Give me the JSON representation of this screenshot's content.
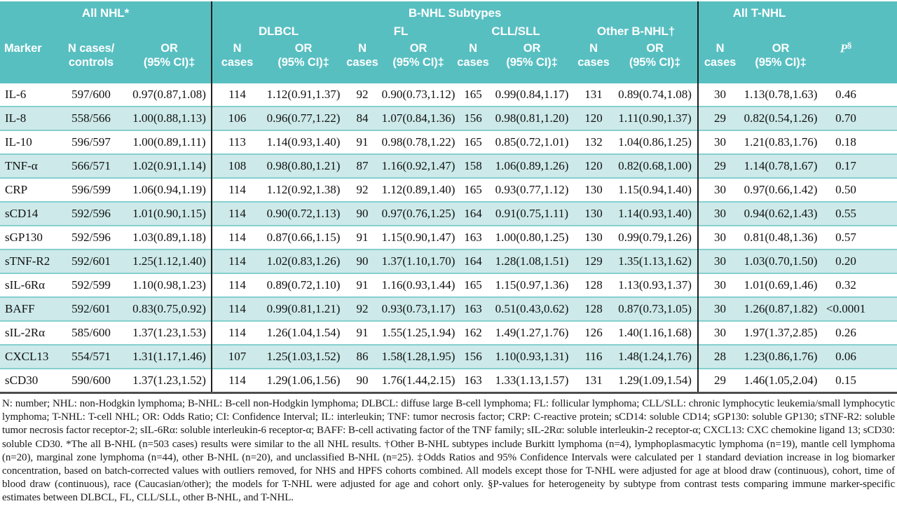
{
  "colors": {
    "header_bg": "#58bfc1",
    "row_shade": "#cde9e9",
    "row_edge": "#85d0d0",
    "divider": "#1f1f1f"
  },
  "header": {
    "groups": {
      "all_nhl": "All NHL*",
      "b_nhl": "B-NHL Subtypes",
      "all_t_nhl": "All T-NHL"
    },
    "subtypes": {
      "dlbcl": "DLBCL",
      "fl": "FL",
      "cll_sll": "CLL/SLL",
      "other_b_nhl": "Other B-NHL†"
    },
    "columns": {
      "marker": "Marker",
      "n_cases_controls": "N cases/\ncontrols",
      "or_ci": "OR\n(95% CI)‡",
      "n_cases": "N\ncases",
      "p_label": "P",
      "p_sup": "§"
    }
  },
  "table": {
    "rows": [
      [
        "IL-6",
        "597/600",
        "0.97(0.87,1.08)",
        "114",
        "1.12(0.91,1.37)",
        "92",
        "0.90(0.73,1.12)",
        "165",
        "0.99(0.84,1.17)",
        "131",
        "0.89(0.74,1.08)",
        "30",
        "1.13(0.78,1.63)",
        "0.46"
      ],
      [
        "IL-8",
        "558/566",
        "1.00(0.88,1.13)",
        "106",
        "0.96(0.77,1.22)",
        "84",
        "1.07(0.84,1.36)",
        "156",
        "0.98(0.81,1.20)",
        "120",
        "1.11(0.90,1.37)",
        "29",
        "0.82(0.54,1.26)",
        "0.70"
      ],
      [
        "IL-10",
        "596/597",
        "1.00(0.89,1.11)",
        "113",
        "1.14(0.93,1.40)",
        "91",
        "0.98(0.78,1.22)",
        "165",
        "0.85(0.72,1.01)",
        "132",
        "1.04(0.86,1.25)",
        "30",
        "1.21(0.83,1.76)",
        "0.18"
      ],
      [
        "TNF-α",
        "566/571",
        "1.02(0.91,1.14)",
        "108",
        "0.98(0.80,1.21)",
        "87",
        "1.16(0.92,1.47)",
        "158",
        "1.06(0.89,1.26)",
        "120",
        "0.82(0.68,1.00)",
        "29",
        "1.14(0.78,1.67)",
        "0.17"
      ],
      [
        "CRP",
        "596/599",
        "1.06(0.94,1.19)",
        "114",
        "1.12(0.92,1.38)",
        "92",
        "1.12(0.89,1.40)",
        "165",
        "0.93(0.77,1.12)",
        "130",
        "1.15(0.94,1.40)",
        "30",
        "0.97(0.66,1.42)",
        "0.50"
      ],
      [
        "sCD14",
        "592/596",
        "1.01(0.90,1.15)",
        "114",
        "0.90(0.72,1.13)",
        "90",
        "0.97(0.76,1.25)",
        "164",
        "0.91(0.75,1.11)",
        "130",
        "1.14(0.93,1.40)",
        "30",
        "0.94(0.62,1.43)",
        "0.55"
      ],
      [
        "sGP130",
        "592/596",
        "1.03(0.89,1.18)",
        "114",
        "0.87(0.66,1.15)",
        "91",
        "1.15(0.90,1.47)",
        "163",
        "1.00(0.80,1.25)",
        "130",
        "0.99(0.79,1.26)",
        "30",
        "0.81(0.48,1.36)",
        "0.57"
      ],
      [
        "sTNF-R2",
        "592/601",
        "1.25(1.12,1.40)",
        "114",
        "1.02(0.83,1.26)",
        "90",
        "1.37(1.10,1.70)",
        "164",
        "1.28(1.08,1.51)",
        "129",
        "1.35(1.13,1.62)",
        "30",
        "1.03(0.70,1.50)",
        "0.20"
      ],
      [
        "sIL-6Rα",
        "592/599",
        "1.10(0.98,1.23)",
        "114",
        "0.89(0.72,1.10)",
        "91",
        "1.16(0.93,1.44)",
        "165",
        "1.15(0.97,1.36)",
        "128",
        "1.13(0.93,1.37)",
        "30",
        "1.01(0.69,1.46)",
        "0.32"
      ],
      [
        "BAFF",
        "592/601",
        "0.83(0.75,0.92)",
        "114",
        "0.99(0.81,1.21)",
        "92",
        "0.93(0.73,1.17)",
        "163",
        "0.51(0.43,0.62)",
        "128",
        "0.87(0.73,1.05)",
        "30",
        "1.26(0.87,1.82)",
        "<0.0001"
      ],
      [
        "sIL-2Rα",
        "585/600",
        "1.37(1.23,1.53)",
        "114",
        "1.26(1.04,1.54)",
        "91",
        "1.55(1.25,1.94)",
        "162",
        "1.49(1.27,1.76)",
        "126",
        "1.40(1.16,1.68)",
        "30",
        "1.97(1.37,2.85)",
        "0.26"
      ],
      [
        "CXCL13",
        "554/571",
        "1.31(1.17,1.46)",
        "107",
        "1.25(1.03,1.52)",
        "86",
        "1.58(1.28,1.95)",
        "156",
        "1.10(0.93,1.31)",
        "116",
        "1.48(1.24,1.76)",
        "28",
        "1.23(0.86,1.76)",
        "0.06"
      ],
      [
        "sCD30",
        "590/600",
        "1.37(1.23,1.52)",
        "114",
        "1.29(1.06,1.56)",
        "90",
        "1.76(1.44,2.15)",
        "163",
        "1.33(1.13,1.57)",
        "131",
        "1.29(1.09,1.54)",
        "29",
        "1.46(1.05,2.04)",
        "0.15"
      ]
    ]
  },
  "footnote": "N: number; NHL: non-Hodgkin lymphoma; B-NHL:  B-cell non-Hodgkin lymphoma; DLBCL:  diffuse large B-cell lymphoma; FL:  follicular lymphoma; CLL/SLL:  chronic lymphocytic leukemia/small lymphocytic lymphoma; T-NHL: T-cell NHL; OR:  Odds Ratio;  CI:  Confidence Interval; IL:  interleukin; TNF:  tumor necrosis factor; CRP:  C-reactive protein; sCD14:  soluble CD14; sGP130:  soluble GP130; sTNF-R2:  soluble tumor necrosis factor receptor-2; sIL-6Rα: soluble interleukin-6 receptor-α;  BAFF: B-cell activating factor of the TNF family; sIL-2Rα:  soluble interleukin-2 receptor-α; CXCL13:  CXC chemokine ligand 13; sCD30: soluble CD30. *The all B-NHL (n=503 cases) results were similar to the all NHL results. †Other B-NHL subtypes include Burkitt lymphoma (n=4), lymphoplasmacytic lymphoma (n=19), mantle cell lymphoma (n=20), marginal zone lymphoma (n=44), other B-NHL (n=20), and unclassified B-NHL (n=25). ‡Odds Ratios and 95% Confidence Intervals were calculated per 1 standard deviation increase in log biomarker concentration, based on batch-corrected values with outliers removed, for NHS and HPFS cohorts combined. All models except those for T-NHL were adjusted for age at blood draw (continuous), cohort, time of blood draw (continuous), race (Caucasian/other); the models for T-NHL were adjusted for age and cohort only. §P-values for heterogeneity by subtype from contrast tests comparing immune marker-specific estimates between DLBCL, FL, CLL/SLL, other B-NHL, and T-NHL."
}
